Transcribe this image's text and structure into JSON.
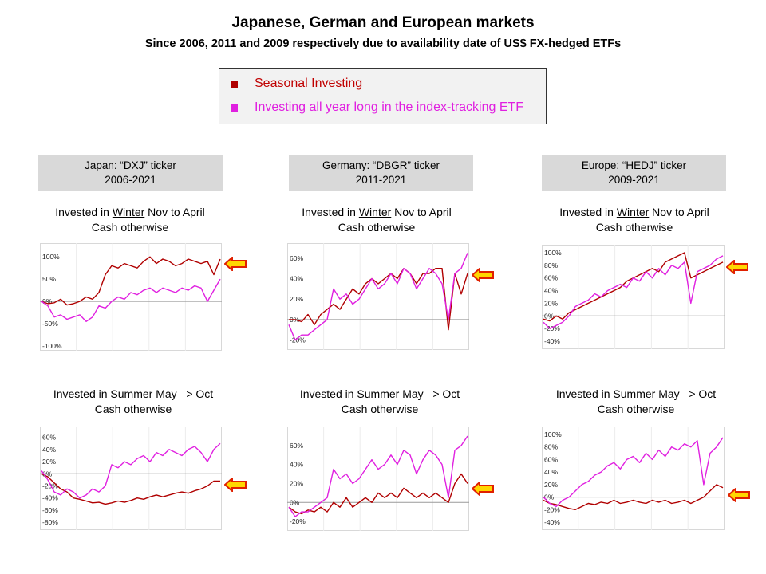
{
  "header": {
    "title": "Japanese, German and European markets",
    "subtitle": "Since 2006, 2011 and 2009 respectively due to availability date of US$ FX-hedged ETFs"
  },
  "legend": {
    "items": [
      {
        "label": "Seasonal Investing",
        "color": "#b00000",
        "text_color": "#c00000"
      },
      {
        "label": "Investing all year long in the index-tracking ETF",
        "color": "#e020e0",
        "text_color": "#e020e0"
      }
    ]
  },
  "colors": {
    "seasonal": "#b00000",
    "etf": "#e020e0",
    "arrow_fill": "#ffd700",
    "arrow_stroke": "#e02000"
  },
  "panels": [
    {
      "header_line1": "Japan: “DXJ” ticker",
      "header_line2": "2006-2021"
    },
    {
      "header_line1": "Germany: “DBGR” ticker",
      "header_line2": "2011-2021"
    },
    {
      "header_line1": "Europe: “HEDJ” ticker",
      "header_line2": "2009-2021"
    }
  ],
  "captions": {
    "winter": {
      "prefix": "Invested in ",
      "season": "Winter",
      "suffix": " Nov to April",
      "line2": "Cash otherwise"
    },
    "summer": {
      "prefix": "Invested in ",
      "season": "Summer",
      "suffix": "  May –> Oct",
      "line2": "Cash otherwise"
    }
  },
  "chart_data": [
    {
      "id": "japan-winter",
      "type": "line",
      "ylim": [
        -100,
        120
      ],
      "yticks": [
        {
          "v": 100,
          "label": "100%"
        },
        {
          "v": 50,
          "label": "50%"
        },
        {
          "v": 0,
          "label": "0%"
        },
        {
          "v": -50,
          "label": "-50%"
        },
        {
          "v": -100,
          "label": "-100%"
        }
      ],
      "series": [
        {
          "name": "Seasonal Investing",
          "key": "seasonal",
          "values": [
            0,
            -5,
            -3,
            5,
            -8,
            -5,
            0,
            10,
            5,
            20,
            60,
            80,
            75,
            85,
            80,
            75,
            90,
            100,
            85,
            95,
            90,
            80,
            85,
            95,
            90,
            85,
            90,
            60,
            95
          ]
        },
        {
          "name": "Investing all year long in the index-tracking ETF",
          "key": "etf",
          "values": [
            0,
            -10,
            -35,
            -30,
            -40,
            -35,
            -30,
            -45,
            -35,
            -10,
            -15,
            0,
            10,
            5,
            20,
            15,
            25,
            30,
            20,
            30,
            25,
            20,
            30,
            25,
            35,
            30,
            0,
            25,
            50
          ]
        }
      ]
    },
    {
      "id": "germany-winter",
      "type": "line",
      "ylim": [
        -25,
        70
      ],
      "yticks": [
        {
          "v": 60,
          "label": "60%"
        },
        {
          "v": 40,
          "label": "40%"
        },
        {
          "v": 20,
          "label": "20%"
        },
        {
          "v": 0,
          "label": "0%"
        },
        {
          "v": -20,
          "label": "-20%"
        }
      ],
      "series": [
        {
          "name": "Seasonal Investing",
          "key": "seasonal",
          "values": [
            0,
            0,
            -2,
            5,
            -5,
            5,
            10,
            15,
            10,
            20,
            30,
            25,
            35,
            40,
            35,
            40,
            45,
            40,
            50,
            45,
            35,
            45,
            45,
            50,
            50,
            -10,
            45,
            25,
            45
          ]
        },
        {
          "name": "Investing all year long in the index-tracking ETF",
          "key": "etf",
          "values": [
            -5,
            -20,
            -15,
            -15,
            -10,
            -5,
            0,
            30,
            20,
            25,
            15,
            20,
            30,
            40,
            30,
            35,
            45,
            35,
            50,
            45,
            30,
            40,
            50,
            45,
            35,
            0,
            45,
            50,
            65
          ]
        }
      ]
    },
    {
      "id": "europe-winter",
      "type": "line",
      "ylim": [
        -45,
        105
      ],
      "yticks": [
        {
          "v": 100,
          "label": "100%"
        },
        {
          "v": 80,
          "label": "80%"
        },
        {
          "v": 60,
          "label": "60%"
        },
        {
          "v": 40,
          "label": "40%"
        },
        {
          "v": 20,
          "label": "20%"
        },
        {
          "v": 0,
          "label": "0%"
        },
        {
          "v": -20,
          "label": "-20%"
        },
        {
          "v": -40,
          "label": "-40%"
        }
      ],
      "series": [
        {
          "name": "Seasonal Investing",
          "key": "seasonal",
          "values": [
            -5,
            -8,
            0,
            -5,
            5,
            10,
            15,
            20,
            25,
            30,
            35,
            40,
            45,
            55,
            60,
            65,
            70,
            75,
            70,
            85,
            90,
            95,
            100,
            60,
            65,
            70,
            75,
            80,
            85
          ]
        },
        {
          "name": "Investing all year long in the index-tracking ETF",
          "key": "etf",
          "values": [
            -10,
            -20,
            -15,
            -10,
            0,
            15,
            20,
            25,
            35,
            30,
            40,
            45,
            50,
            45,
            60,
            55,
            70,
            60,
            75,
            65,
            80,
            75,
            85,
            20,
            70,
            75,
            80,
            90,
            95
          ]
        }
      ]
    },
    {
      "id": "japan-summer",
      "type": "line",
      "ylim": [
        -85,
        70
      ],
      "yticks": [
        {
          "v": 60,
          "label": "60%"
        },
        {
          "v": 40,
          "label": "40%"
        },
        {
          "v": 20,
          "label": "20%"
        },
        {
          "v": 0,
          "label": "0%"
        },
        {
          "v": -20,
          "label": "-20%"
        },
        {
          "v": -40,
          "label": "-40%"
        },
        {
          "v": -60,
          "label": "-60%"
        },
        {
          "v": -80,
          "label": "-80%"
        }
      ],
      "series": [
        {
          "name": "Seasonal Investing",
          "key": "seasonal",
          "values": [
            0,
            -5,
            -15,
            -25,
            -30,
            -40,
            -42,
            -45,
            -48,
            -47,
            -50,
            -48,
            -45,
            -47,
            -44,
            -40,
            -42,
            -38,
            -35,
            -38,
            -35,
            -32,
            -30,
            -32,
            -28,
            -25,
            -20,
            -12,
            -12
          ]
        },
        {
          "name": "Investing all year long in the index-tracking ETF",
          "key": "etf",
          "values": [
            5,
            -10,
            -30,
            -35,
            -25,
            -30,
            -40,
            -35,
            -25,
            -30,
            -20,
            15,
            10,
            20,
            15,
            25,
            30,
            20,
            35,
            30,
            40,
            35,
            30,
            40,
            45,
            35,
            20,
            40,
            50
          ]
        }
      ]
    },
    {
      "id": "germany-summer",
      "type": "line",
      "ylim": [
        -25,
        75
      ],
      "yticks": [
        {
          "v": 60,
          "label": "60%"
        },
        {
          "v": 40,
          "label": "40%"
        },
        {
          "v": 20,
          "label": "20%"
        },
        {
          "v": 0,
          "label": "0%"
        },
        {
          "v": -20,
          "label": "-20%"
        }
      ],
      "series": [
        {
          "name": "Seasonal Investing",
          "key": "seasonal",
          "values": [
            -5,
            -10,
            -12,
            -8,
            -10,
            -5,
            -10,
            0,
            -5,
            5,
            -5,
            0,
            5,
            0,
            10,
            5,
            10,
            5,
            15,
            10,
            5,
            10,
            5,
            10,
            5,
            0,
            20,
            30,
            20
          ]
        },
        {
          "name": "Investing all year long in the index-tracking ETF",
          "key": "etf",
          "values": [
            -5,
            -15,
            -10,
            -10,
            -5,
            0,
            5,
            35,
            25,
            30,
            20,
            25,
            35,
            45,
            35,
            40,
            50,
            40,
            55,
            50,
            30,
            45,
            55,
            50,
            40,
            5,
            55,
            60,
            70
          ]
        }
      ]
    },
    {
      "id": "europe-summer",
      "type": "line",
      "ylim": [
        -45,
        105
      ],
      "yticks": [
        {
          "v": 100,
          "label": "100%"
        },
        {
          "v": 80,
          "label": "80%"
        },
        {
          "v": 60,
          "label": "60%"
        },
        {
          "v": 40,
          "label": "40%"
        },
        {
          "v": 20,
          "label": "20%"
        },
        {
          "v": 0,
          "label": "0%"
        },
        {
          "v": -20,
          "label": "-20%"
        },
        {
          "v": -40,
          "label": "-40%"
        }
      ],
      "series": [
        {
          "name": "Seasonal Investing",
          "key": "seasonal",
          "values": [
            -5,
            -10,
            -12,
            -15,
            -18,
            -20,
            -15,
            -10,
            -12,
            -8,
            -10,
            -5,
            -10,
            -8,
            -5,
            -8,
            -10,
            -5,
            -8,
            -5,
            -10,
            -8,
            -5,
            -10,
            -5,
            0,
            10,
            20,
            15
          ]
        },
        {
          "name": "Investing all year long in the index-tracking ETF",
          "key": "etf",
          "values": [
            0,
            -10,
            -15,
            -5,
            0,
            10,
            20,
            25,
            35,
            40,
            50,
            55,
            45,
            60,
            65,
            55,
            70,
            60,
            75,
            65,
            80,
            75,
            85,
            80,
            90,
            20,
            70,
            80,
            95
          ]
        }
      ]
    }
  ]
}
